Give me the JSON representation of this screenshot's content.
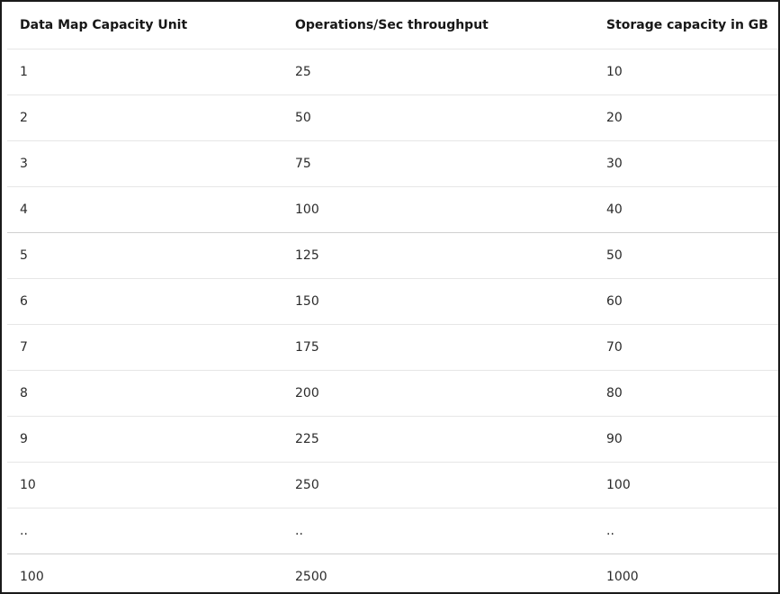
{
  "table": {
    "headers": [
      "Data Map Capacity Unit",
      "Operations/Sec throughput",
      "Storage capacity in GB"
    ],
    "rows": [
      [
        "1",
        "25",
        "10"
      ],
      [
        "2",
        "50",
        "20"
      ],
      [
        "3",
        "75",
        "30"
      ],
      [
        "4",
        "100",
        "40"
      ],
      [
        "5",
        "125",
        "50"
      ],
      [
        "6",
        "150",
        "60"
      ],
      [
        "7",
        "175",
        "70"
      ],
      [
        "8",
        "200",
        "80"
      ],
      [
        "9",
        "225",
        "90"
      ],
      [
        "10",
        "250",
        "100"
      ],
      [
        "..",
        "..",
        ".."
      ],
      [
        "100",
        "2500",
        "1000"
      ]
    ]
  }
}
